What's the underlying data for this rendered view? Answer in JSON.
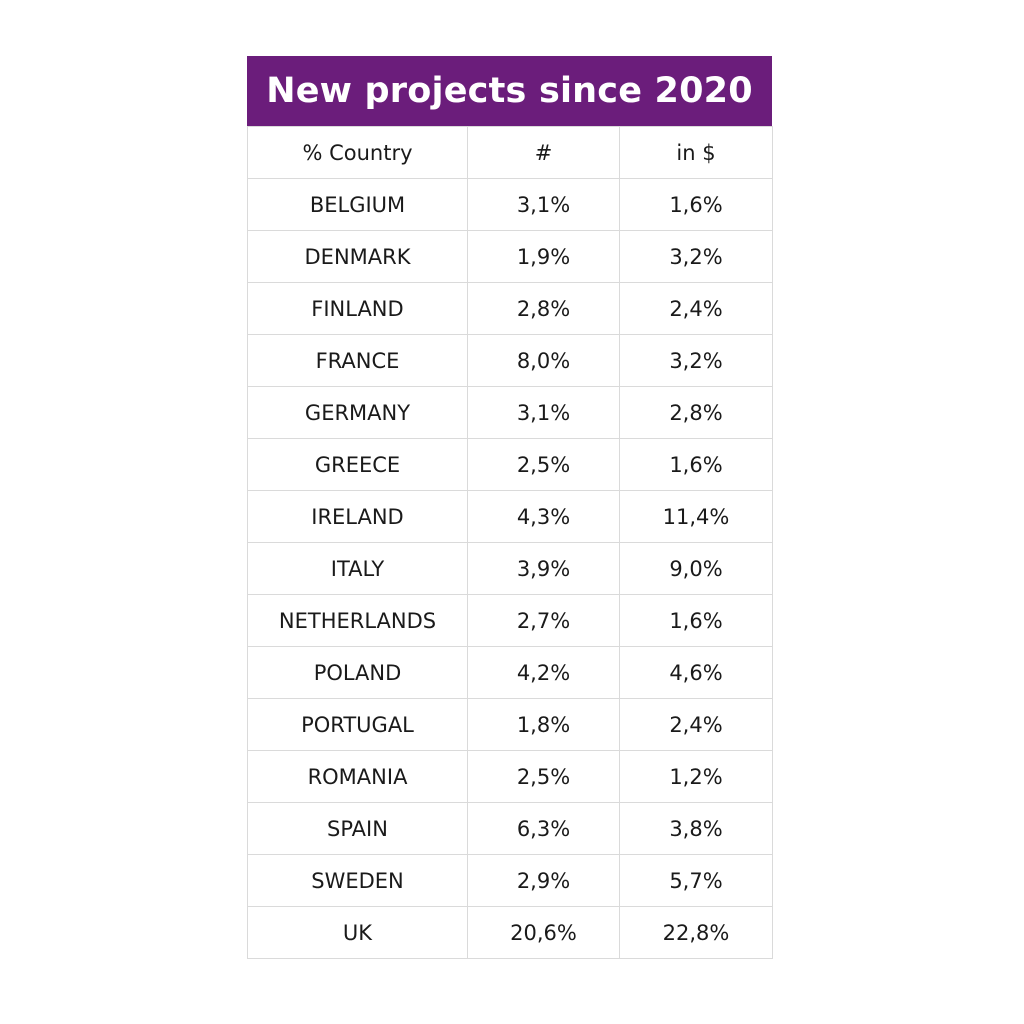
{
  "chart_data": {
    "type": "table",
    "title": "New projects since 2020",
    "columns": [
      "% Country",
      "#",
      "in $"
    ],
    "rows": [
      {
        "country": "BELGIUM",
        "count": "3,1%",
        "value": "1,6%"
      },
      {
        "country": "DENMARK",
        "count": "1,9%",
        "value": "3,2%"
      },
      {
        "country": "FINLAND",
        "count": "2,8%",
        "value": "2,4%"
      },
      {
        "country": "FRANCE",
        "count": "8,0%",
        "value": "3,2%"
      },
      {
        "country": "GERMANY",
        "count": "3,1%",
        "value": "2,8%"
      },
      {
        "country": "GREECE",
        "count": "2,5%",
        "value": "1,6%"
      },
      {
        "country": "IRELAND",
        "count": "4,3%",
        "value": "11,4%"
      },
      {
        "country": "ITALY",
        "count": "3,9%",
        "value": "9,0%"
      },
      {
        "country": "NETHERLANDS",
        "count": "2,7%",
        "value": "1,6%"
      },
      {
        "country": "POLAND",
        "count": "4,2%",
        "value": "4,6%"
      },
      {
        "country": "PORTUGAL",
        "count": "1,8%",
        "value": "2,4%"
      },
      {
        "country": "ROMANIA",
        "count": "2,5%",
        "value": "1,2%"
      },
      {
        "country": "SPAIN",
        "count": "6,3%",
        "value": "3,8%"
      },
      {
        "country": "SWEDEN",
        "count": "2,9%",
        "value": "5,7%"
      },
      {
        "country": "UK",
        "count": "20,6%",
        "value": "22,8%"
      }
    ]
  },
  "colors": {
    "header_bg": "#6b1d7b",
    "header_text": "#ffffff",
    "grid_line": "#dadada",
    "cell_text": "#1a1a1a"
  }
}
